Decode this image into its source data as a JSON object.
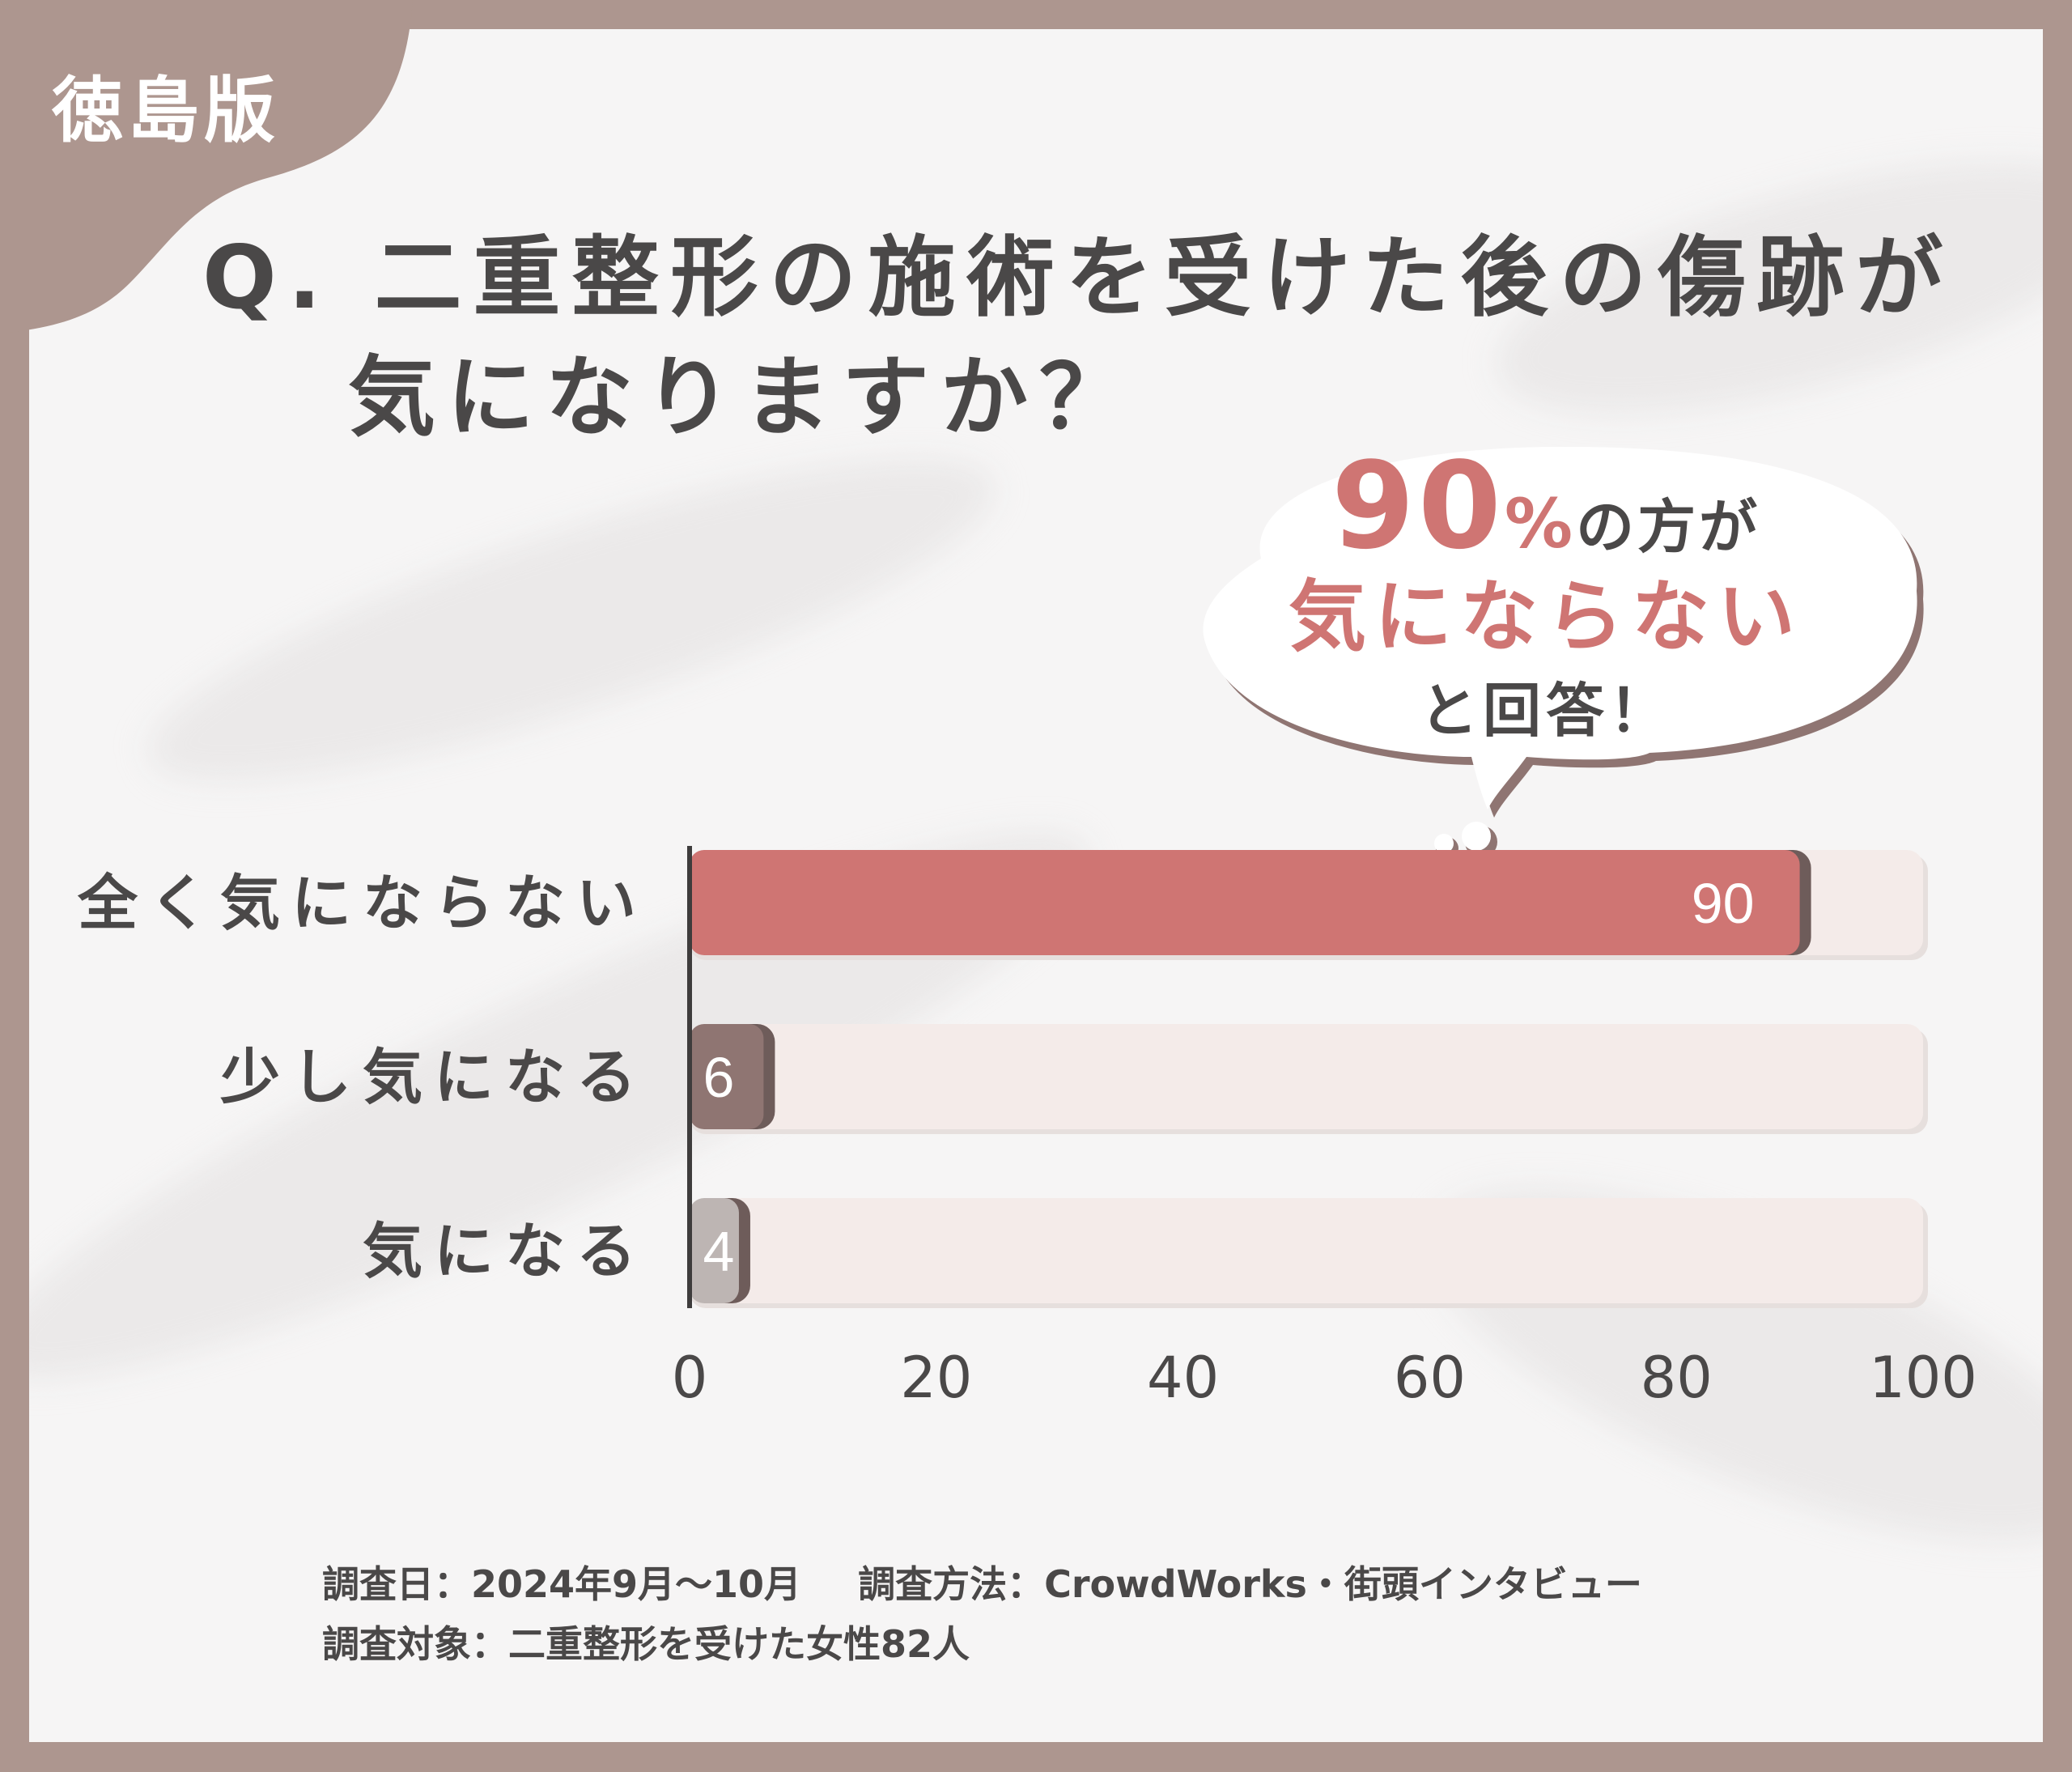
{
  "corner_label": "徳島版",
  "question": {
    "line1": "Q. 二重整形の施術を受けた後の傷跡が",
    "line2": "気になりますか？"
  },
  "callout": {
    "percent": "90",
    "percent_sign": "%",
    "suffix": "の方が",
    "highlight": "気にならない",
    "tail": "と回答！"
  },
  "chart_data": {
    "type": "bar",
    "orientation": "horizontal",
    "categories": [
      "全く気にならない",
      "少し気になる",
      "気になる"
    ],
    "values": [
      90,
      6,
      4
    ],
    "value_labels": [
      "90",
      "6",
      "4"
    ],
    "xlim": [
      0,
      100
    ],
    "x_ticks": [
      "0",
      "20",
      "40",
      "60",
      "80",
      "100"
    ],
    "bar_colors": [
      "#cf7573",
      "#8f7572",
      "#bdb5b3"
    ],
    "track_color": "#f4ebe9",
    "grid": false
  },
  "footnote": {
    "date": "調査日：2024年9月～10月",
    "method": "調査方法：CrowdWorks・街頭インタビュー",
    "target": "調査対象：二重整形を受けた女性82人"
  },
  "colors": {
    "frame": "#ad968f",
    "accent": "#cf7573",
    "text": "#4a4848"
  }
}
